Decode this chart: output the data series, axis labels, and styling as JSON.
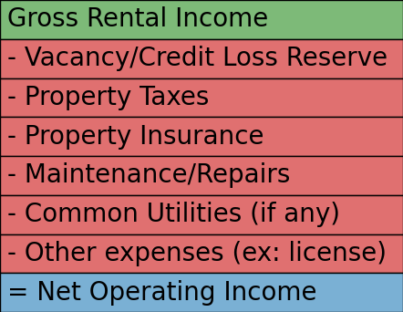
{
  "rows": [
    {
      "label": "Gross Rental Income",
      "color": "#7dba78",
      "prefix": ""
    },
    {
      "label": "Vacancy/Credit Loss Reserve",
      "color": "#e07070",
      "prefix": "- "
    },
    {
      "label": "Property Taxes",
      "color": "#e07070",
      "prefix": "- "
    },
    {
      "label": "Property Insurance",
      "color": "#e07070",
      "prefix": "- "
    },
    {
      "label": "Maintenance/Repairs",
      "color": "#e07070",
      "prefix": "- "
    },
    {
      "label": "Common Utilities (if any)",
      "color": "#e07070",
      "prefix": "- "
    },
    {
      "label": "Other expenses (ex: license)",
      "color": "#e07070",
      "prefix": "- "
    },
    {
      "label": "Net Operating Income",
      "color": "#7ab0d4",
      "prefix": "= "
    }
  ],
  "border_color": "#000000",
  "text_color": "#000000",
  "font_size": 20,
  "fig_width": 4.42,
  "fig_height": 3.42,
  "dpi": 100
}
